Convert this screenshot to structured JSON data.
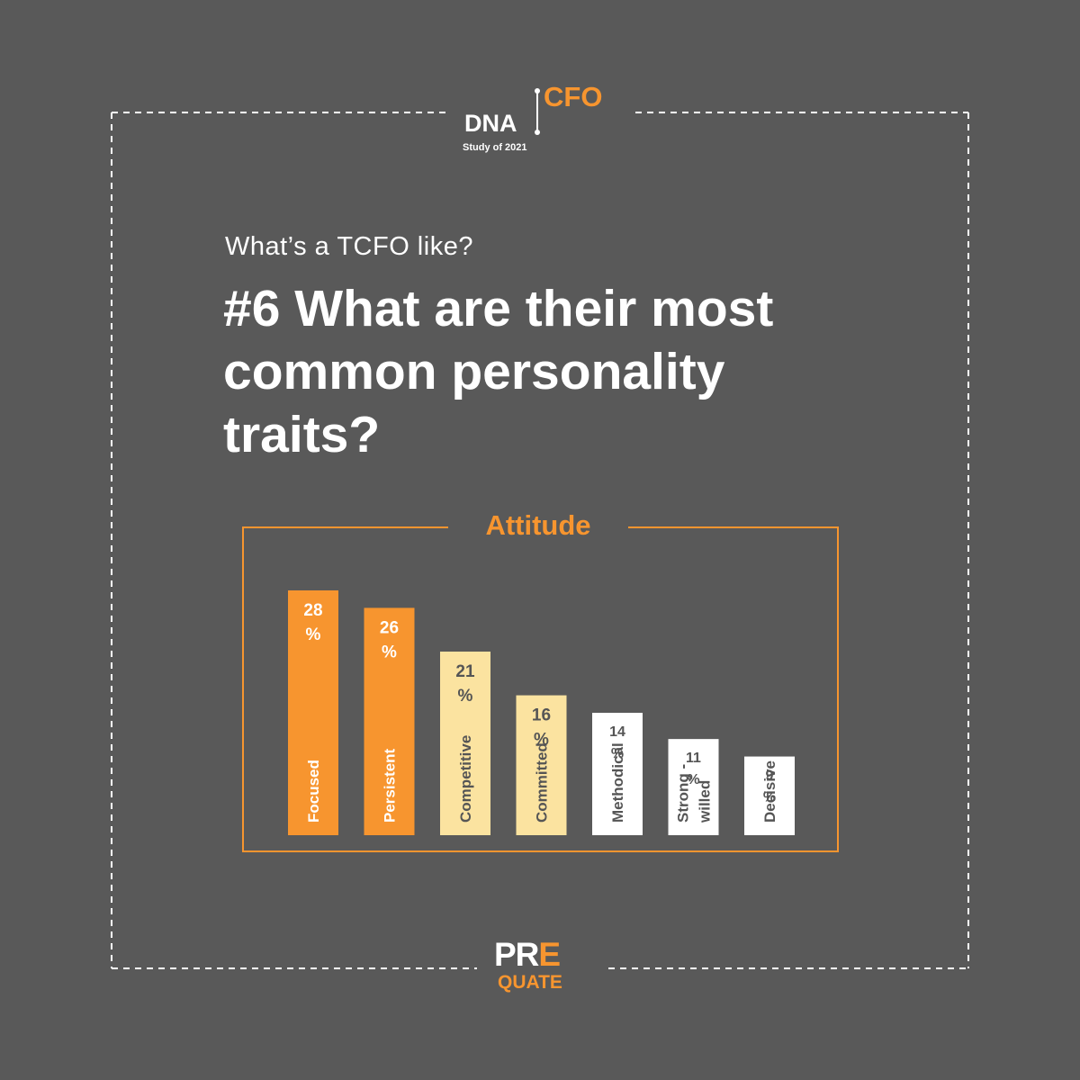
{
  "logo_top": {
    "dna": "DNA",
    "cfo": "CFO",
    "study": "Study of 2021"
  },
  "header": {
    "subtitle": "What’s a TCFO like?",
    "title": "#6 What are their most common personality traits?"
  },
  "colors": {
    "background": "#595959",
    "accent_orange": "#f7952f",
    "light_yellow": "#fbe3a0",
    "white": "#ffffff",
    "dark_text": "#555555"
  },
  "chart_data": {
    "type": "bar",
    "title": "Attitude",
    "categories": [
      "Focused",
      "Persistent",
      "Competitive",
      "Committed",
      "Methodical",
      "Strong - willed",
      "Decisive"
    ],
    "value_labels": [
      [
        "28",
        "%"
      ],
      [
        "26",
        "%"
      ],
      [
        "21",
        "%"
      ],
      [
        "16",
        "%"
      ],
      [
        "14",
        "%"
      ],
      [
        "11",
        "%"
      ],
      [
        "9",
        "%"
      ]
    ],
    "category_lines": [
      [
        "Focused"
      ],
      [
        "Persistent"
      ],
      [
        "Competitive"
      ],
      [
        "Committed"
      ],
      [
        "Methodical"
      ],
      [
        "Strong -",
        "willed"
      ],
      [
        "Decisive"
      ]
    ],
    "values": [
      28,
      26,
      21,
      16,
      14,
      11,
      9
    ],
    "unit": "%",
    "bar_colors": [
      "#f7952f",
      "#f7952f",
      "#fbe3a0",
      "#fbe3a0",
      "#ffffff",
      "#ffffff",
      "#ffffff"
    ],
    "label_colors": [
      "#ffffff",
      "#ffffff",
      "#555555",
      "#555555",
      "#555555",
      "#555555",
      "#555555"
    ],
    "ylim": [
      0,
      28
    ],
    "xlabel": "",
    "ylabel": "",
    "grid": false
  },
  "logo_bottom": {
    "pre_main": "PR",
    "pre_accent": "E",
    "quate": "QUATE"
  }
}
